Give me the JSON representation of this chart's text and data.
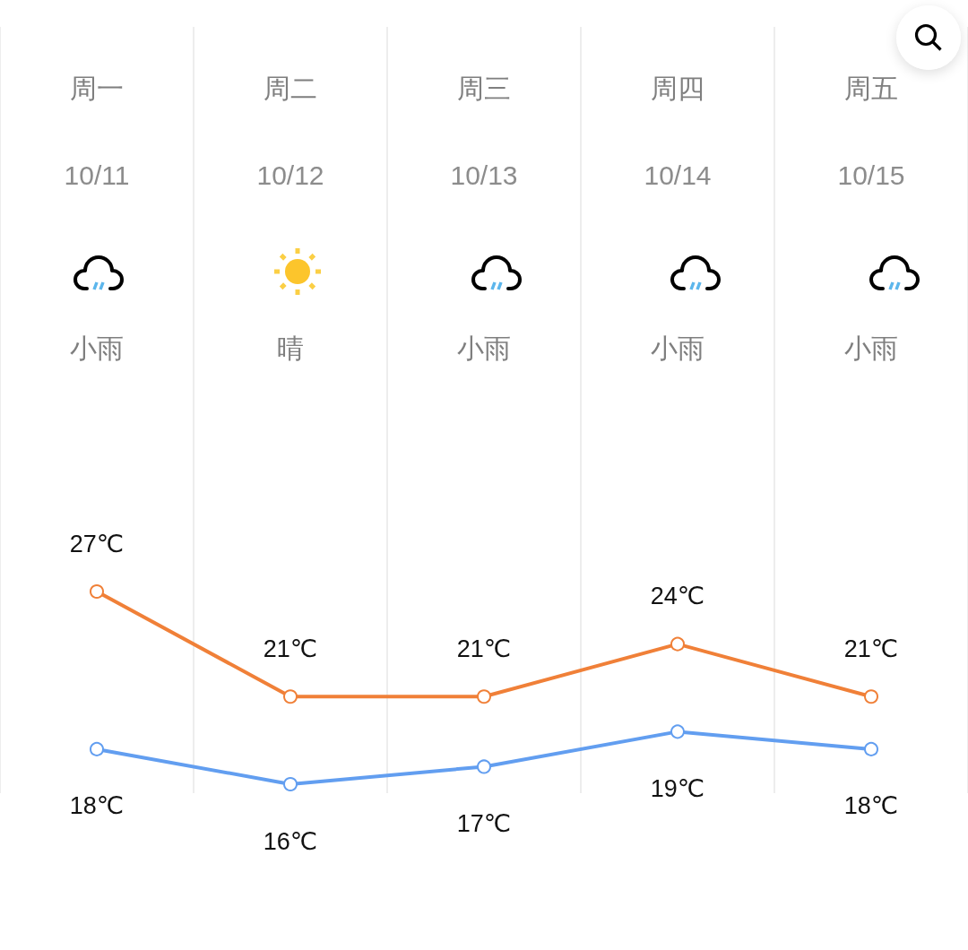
{
  "chart_data": {
    "type": "line",
    "categories": [
      "周一\n10/11\n小雨",
      "周二\n10/12\n晴",
      "周三\n10/13\n小雨",
      "周四\n10/14\n小雨",
      "周五\n10/15\n小雨"
    ],
    "series": [
      {
        "color": "#f08038",
        "values": [
          27,
          21,
          21,
          24,
          21
        ],
        "value_labels": [
          "27℃",
          "21℃",
          "21℃",
          "24℃",
          "21℃"
        ]
      },
      {
        "color": "#629ef0",
        "values": [
          18,
          16,
          17,
          19,
          18
        ],
        "value_labels": [
          "18℃",
          "16℃",
          "17℃",
          "19℃",
          "18℃"
        ]
      }
    ],
    "grid": "x",
    "marker": "circle",
    "tick_labels": "x"
  }
}
